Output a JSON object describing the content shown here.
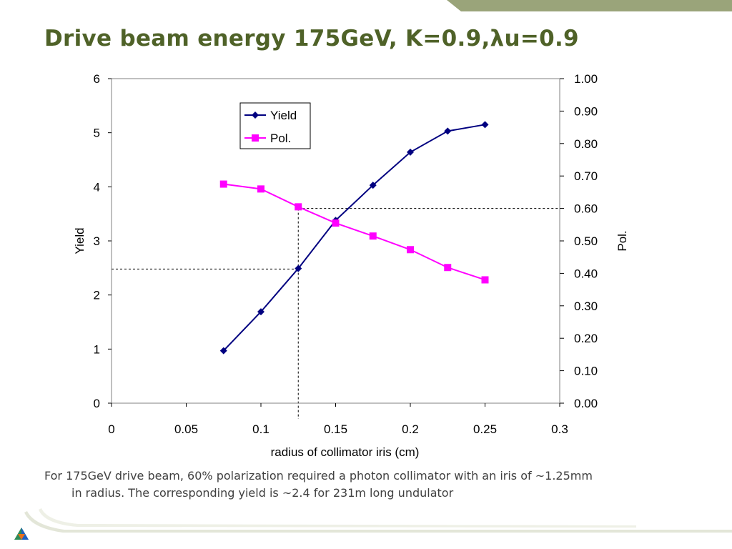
{
  "slide": {
    "title": "Drive beam energy 175GeV, K=0.9,λu=0.9",
    "caption_line1": "For 175GeV drive beam, 60% polarization required a photon collimator with an iris of ~1.25mm",
    "caption_line2": "in radius.  The corresponding yield is ~2.4 for 231m long undulator"
  },
  "chart_data": {
    "type": "line",
    "xlabel": "radius of collimator iris (cm)",
    "ylabel": "Yield",
    "y2label": "Pol.",
    "xlim": [
      0,
      0.3
    ],
    "ylim": [
      0,
      6
    ],
    "y2lim": [
      0,
      1.0
    ],
    "xticks": [
      "0",
      "0.05",
      "0.1",
      "0.15",
      "0.2",
      "0.25",
      "0.3"
    ],
    "yticks": [
      "0",
      "1",
      "2",
      "3",
      "4",
      "5",
      "6"
    ],
    "y2ticks": [
      "0.00",
      "0.10",
      "0.20",
      "0.30",
      "0.40",
      "0.50",
      "0.60",
      "0.70",
      "0.80",
      "0.90",
      "1.00"
    ],
    "x": [
      0.075,
      0.1,
      0.125,
      0.15,
      0.175,
      0.2,
      0.225,
      0.25
    ],
    "series": [
      {
        "name": "Yield",
        "axis": "left",
        "marker": "diamond",
        "color": "#000080",
        "values": [
          0.97,
          1.69,
          2.49,
          3.38,
          4.03,
          4.64,
          5.03,
          5.15
        ]
      },
      {
        "name": "Pol.",
        "axis": "right",
        "marker": "square",
        "color": "#ff00ff",
        "values": [
          0.675,
          0.66,
          0.605,
          0.555,
          0.515,
          0.473,
          0.418,
          0.38
        ]
      }
    ],
    "reference_lines": {
      "x": 0.125,
      "yield": 2.48,
      "pol": 0.6
    },
    "legend_position": "top-left",
    "grid": false
  }
}
